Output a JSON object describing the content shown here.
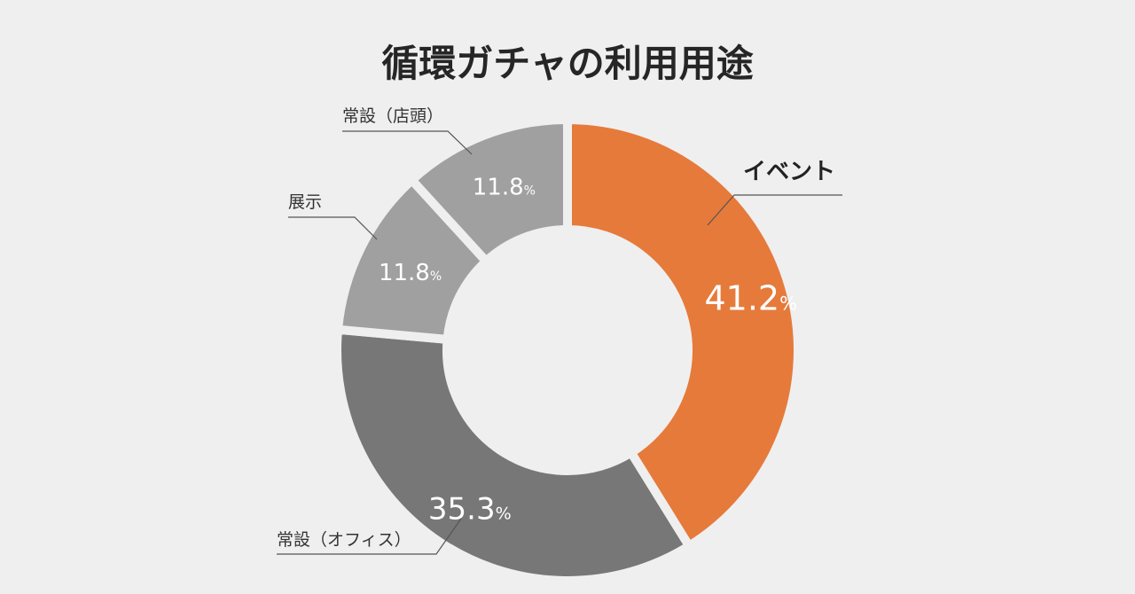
{
  "chart_data": {
    "type": "pie",
    "title": "循環ガチャの利用用途",
    "categories": [
      "イベント",
      "常設（オフィス）",
      "展示",
      "常設（店頭）"
    ],
    "values": [
      41.2,
      35.3,
      11.8,
      11.8
    ],
    "value_labels": [
      "41.2",
      "35.3",
      "11.8",
      "11.8"
    ],
    "unit": "%",
    "colors": [
      "#e67a3b",
      "#777777",
      "#a0a0a0",
      "#a0a0a0"
    ],
    "donut": true
  }
}
